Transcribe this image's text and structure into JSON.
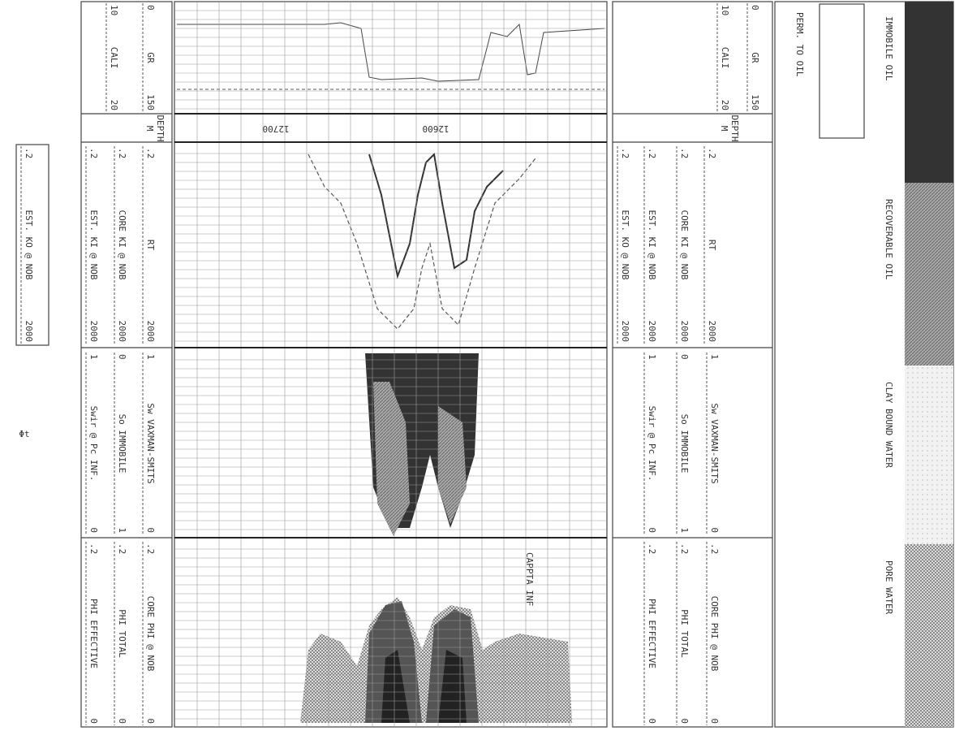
{
  "legend": {
    "items": [
      "IMMOBILE OIL",
      "RECOVERABLE OIL",
      "CLAY BOUND WATER",
      "PORE WATER"
    ],
    "perm_label": "PERM. TO OIL"
  },
  "gr_track": {
    "curves": [
      {
        "name": "GR",
        "left": "0",
        "right": "150"
      },
      {
        "name": "CALI",
        "left": "10",
        "right": "20"
      }
    ]
  },
  "depth_track": {
    "label": "DEPTH",
    "unit": "M",
    "depths": [
      "12700",
      "12600"
    ]
  },
  "rt_track": {
    "curves": [
      {
        "name": "RT",
        "left": ".2",
        "right": "2000"
      },
      {
        "name": "CORE KI @ NOB",
        "left": ".2",
        "right": "2000"
      },
      {
        "name": "EST. KI @ NOB",
        "left": ".2",
        "right": "2000"
      },
      {
        "name": "EST. KO @ NOB",
        "left": ".2",
        "right": "2000"
      }
    ]
  },
  "sat_track": {
    "curves": [
      {
        "name": "Sw VAXMAN-SMITS",
        "left": "1",
        "right": "0"
      },
      {
        "name": "So IMMOBILE",
        "left": "0",
        "right": "1"
      },
      {
        "name": "Swir @ Pc INF.",
        "left": "1",
        "right": "0"
      }
    ]
  },
  "phi_track": {
    "curves": [
      {
        "name": "CORE PHI @ NOB",
        "left": ".2",
        "right": "0"
      },
      {
        "name": "PHI TOTAL",
        "left": ".2",
        "right": "0"
      },
      {
        "name": "PHI EFFECTIVE",
        "left": ".2",
        "right": "0"
      }
    ]
  },
  "annotations": [
    "CAPPTA INF",
    "Φt"
  ]
}
